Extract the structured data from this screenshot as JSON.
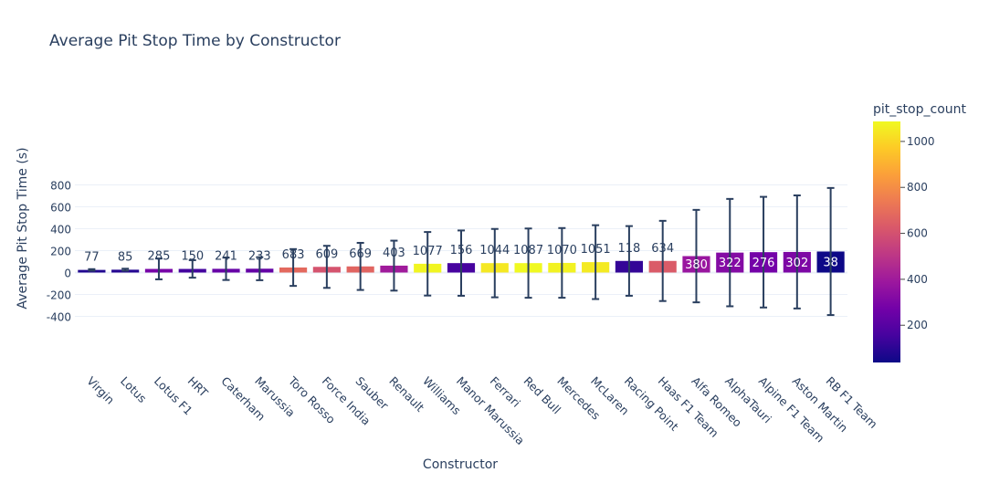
{
  "chart_data": {
    "type": "bar",
    "title": "Average Pit Stop Time by Constructor",
    "xlabel": "Constructor",
    "ylabel": "Average Pit Stop Time (s)",
    "ylim": [
      -420,
      860
    ],
    "yticks": [
      -400,
      -200,
      0,
      200,
      400,
      600,
      800
    ],
    "grid": true,
    "categories": [
      "Virgin",
      "Lotus",
      "Lotus F1",
      "HRT",
      "Caterham",
      "Marussia",
      "Toro Rosso",
      "Force India",
      "Sauber",
      "Renault",
      "Williams",
      "Manor Marussia",
      "Ferrari",
      "Red Bull",
      "Mercedes",
      "McLaren",
      "Racing Point",
      "Haas F1 Team",
      "Alfa Romeo",
      "AlphaTauri",
      "Alpine F1 Team",
      "Aston Martin",
      "RB F1 Team"
    ],
    "values": [
      24,
      26,
      33,
      33,
      34,
      35,
      46,
      52,
      56,
      63,
      80,
      86,
      86,
      86,
      88,
      95,
      106,
      106,
      150,
      182,
      186,
      188,
      192
    ],
    "error": [
      7,
      9,
      95,
      80,
      102,
      105,
      168,
      192,
      215,
      228,
      290,
      298,
      312,
      316,
      318,
      337,
      318,
      366,
      422,
      490,
      505,
      516,
      580
    ],
    "pit_stop_count": [
      77,
      85,
      285,
      150,
      241,
      233,
      683,
      609,
      669,
      403,
      1077,
      156,
      1044,
      1087,
      1070,
      1051,
      118,
      634,
      380,
      322,
      276,
      302,
      38
    ],
    "colorbar": {
      "title": "pit_stop_count",
      "range": [
        38,
        1087
      ],
      "ticks": [
        200,
        400,
        600,
        800,
        1000
      ],
      "colorscale": [
        "#0d0887",
        "#46039f",
        "#7201a8",
        "#9c179e",
        "#bd3786",
        "#d8576b",
        "#ed7953",
        "#fb9f3a",
        "#fdca26",
        "#f0f921"
      ]
    },
    "colors": {
      "grid": "#ebf0f8",
      "text": "#2a3f5f",
      "error_bar": "#2a3f5f"
    }
  }
}
